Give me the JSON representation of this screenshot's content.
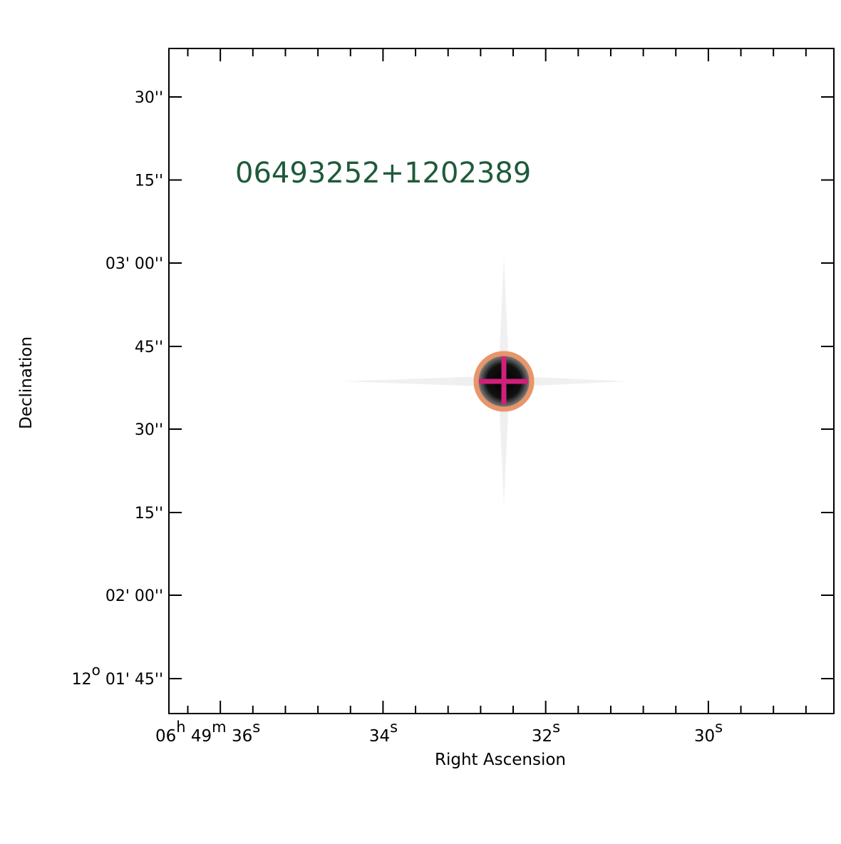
{
  "title": "06493252+1202389",
  "x_label": "Right Ascension",
  "y_label": "Declination",
  "x_ticks": [
    [
      {
        "t": "06"
      },
      {
        "sup": "h"
      },
      {
        "t": " 49"
      },
      {
        "sup": "m"
      },
      {
        "t": " 36"
      },
      {
        "sup": "s"
      }
    ],
    [
      {
        "t": "34"
      },
      {
        "sup": "s"
      }
    ],
    [
      {
        "t": "32"
      },
      {
        "sup": "s"
      }
    ],
    [
      {
        "t": "30"
      },
      {
        "sup": "s"
      }
    ]
  ],
  "y_ticks": [
    [
      {
        "t": "30''"
      }
    ],
    [
      {
        "t": "15''"
      }
    ],
    [
      {
        "t": "03' 00''"
      }
    ],
    [
      {
        "t": "45''"
      }
    ],
    [
      {
        "t": "30''"
      }
    ],
    [
      {
        "t": "15''"
      }
    ],
    [
      {
        "t": "02' 00''"
      }
    ],
    [
      {
        "t": "12"
      },
      {
        "sup": "o"
      },
      {
        "t": " 01' 45''"
      }
    ]
  ]
}
